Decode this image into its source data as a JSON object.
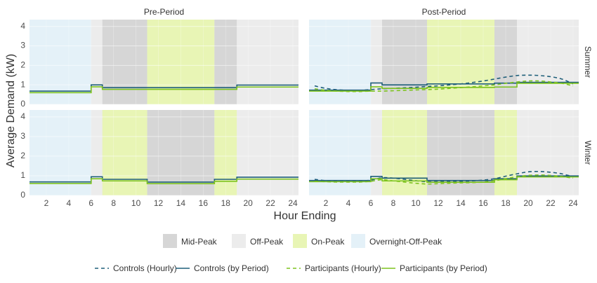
{
  "chart_data": {
    "type": "line",
    "xlabel": "Hour Ending",
    "ylabel": "Average Demand (kW)",
    "columns": [
      "Pre-Period",
      "Post-Period"
    ],
    "rows": [
      "Summer",
      "Winter"
    ],
    "x_ticks": [
      2,
      4,
      6,
      8,
      10,
      12,
      14,
      16,
      18,
      20,
      22,
      24
    ],
    "x_range": [
      0.5,
      24.5
    ],
    "y_ticks": [
      0,
      1,
      2,
      3,
      4
    ],
    "y_range": [
      0,
      4.35
    ],
    "grid": true,
    "legend_position": "bottom",
    "period_legend": [
      {
        "name": "Mid-Peak",
        "color": "#d6d6d6"
      },
      {
        "name": "Off-Peak",
        "color": "#ececec"
      },
      {
        "name": "On-Peak",
        "color": "#e8f5b5"
      },
      {
        "name": "Overnight-Off-Peak",
        "color": "#e4f1f8"
      }
    ],
    "series_legend": [
      {
        "name": "Controls (Hourly)",
        "color": "#1f5f7a",
        "style": "dashed"
      },
      {
        "name": "Controls (by Period)",
        "color": "#1f5f7a",
        "style": "solid"
      },
      {
        "name": "Participants (Hourly)",
        "color": "#7dc31e",
        "style": "dashed"
      },
      {
        "name": "Participants (by Period)",
        "color": "#7dc31e",
        "style": "solid"
      }
    ],
    "panels": [
      {
        "column": "Pre-Period",
        "row": "Summer",
        "bands": [
          {
            "from": 0,
            "to": 6,
            "period": "Overnight-Off-Peak"
          },
          {
            "from": 6,
            "to": 7,
            "period": "Off-Peak"
          },
          {
            "from": 7,
            "to": 11,
            "period": "Mid-Peak"
          },
          {
            "from": 11,
            "to": 17,
            "period": "On-Peak"
          },
          {
            "from": 17,
            "to": 19,
            "period": "Mid-Peak"
          },
          {
            "from": 19,
            "to": 24,
            "period": "Off-Peak"
          }
        ],
        "series": [
          {
            "name": "Controls (by Period)",
            "steps": [
              [
                0.5,
                6,
                0.68
              ],
              [
                6,
                7,
                1.0
              ],
              [
                7,
                19,
                0.86
              ],
              [
                19,
                24.5,
                0.99
              ]
            ]
          },
          {
            "name": "Participants (by Period)",
            "steps": [
              [
                0.5,
                6,
                0.6
              ],
              [
                6,
                7,
                0.9
              ],
              [
                7,
                19,
                0.77
              ],
              [
                19,
                24.5,
                0.89
              ]
            ]
          }
        ]
      },
      {
        "column": "Post-Period",
        "row": "Summer",
        "bands": [
          {
            "from": 0,
            "to": 6,
            "period": "Overnight-Off-Peak"
          },
          {
            "from": 6,
            "to": 7,
            "period": "Off-Peak"
          },
          {
            "from": 7,
            "to": 11,
            "period": "Mid-Peak"
          },
          {
            "from": 11,
            "to": 17,
            "period": "On-Peak"
          },
          {
            "from": 17,
            "to": 19,
            "period": "Mid-Peak"
          },
          {
            "from": 19,
            "to": 24,
            "period": "Off-Peak"
          }
        ],
        "series": [
          {
            "name": "Controls (Hourly)",
            "x": [
              1,
              2,
              3,
              4,
              5,
              6,
              7,
              8,
              9,
              10,
              11,
              12,
              13,
              14,
              15,
              16,
              17,
              18,
              19,
              20,
              21,
              22,
              23,
              24
            ],
            "y": [
              0.95,
              0.82,
              0.75,
              0.72,
              0.72,
              0.76,
              0.8,
              0.82,
              0.85,
              0.88,
              0.92,
              0.95,
              1.0,
              1.05,
              1.12,
              1.2,
              1.3,
              1.4,
              1.48,
              1.5,
              1.48,
              1.42,
              1.3,
              1.05
            ]
          },
          {
            "name": "Controls (by Period)",
            "steps": [
              [
                0.5,
                6,
                0.73
              ],
              [
                6,
                7,
                1.1
              ],
              [
                7,
                11,
                1.0
              ],
              [
                11,
                17,
                1.05
              ],
              [
                17,
                19,
                1.09
              ],
              [
                19,
                24.5,
                1.13
              ]
            ]
          },
          {
            "name": "Participants (Hourly)",
            "x": [
              1,
              2,
              3,
              4,
              5,
              6,
              7,
              8,
              9,
              10,
              11,
              12,
              13,
              14,
              15,
              16,
              17,
              18,
              19,
              20,
              21,
              22,
              23,
              24
            ],
            "y": [
              0.8,
              0.72,
              0.68,
              0.66,
              0.66,
              0.68,
              0.68,
              0.7,
              0.72,
              0.74,
              0.76,
              0.78,
              0.82,
              0.86,
              0.9,
              0.95,
              1.0,
              1.08,
              1.15,
              1.2,
              1.2,
              1.15,
              1.08,
              0.95
            ]
          },
          {
            "name": "Participants (by Period)",
            "steps": [
              [
                0.5,
                6,
                0.68
              ],
              [
                6,
                7,
                0.9
              ],
              [
                7,
                11,
                0.82
              ],
              [
                11,
                17,
                0.87
              ],
              [
                17,
                19,
                0.89
              ],
              [
                19,
                24.5,
                1.08
              ]
            ]
          }
        ]
      },
      {
        "column": "Pre-Period",
        "row": "Winter",
        "bands": [
          {
            "from": 0,
            "to": 6,
            "period": "Overnight-Off-Peak"
          },
          {
            "from": 6,
            "to": 7,
            "period": "Off-Peak"
          },
          {
            "from": 7,
            "to": 11,
            "period": "On-Peak"
          },
          {
            "from": 11,
            "to": 17,
            "period": "Mid-Peak"
          },
          {
            "from": 17,
            "to": 19,
            "period": "On-Peak"
          },
          {
            "from": 19,
            "to": 24,
            "period": "Off-Peak"
          }
        ],
        "series": [
          {
            "name": "Controls (by Period)",
            "steps": [
              [
                0.5,
                6,
                0.69
              ],
              [
                6,
                7,
                0.95
              ],
              [
                7,
                11,
                0.82
              ],
              [
                11,
                17,
                0.68
              ],
              [
                17,
                19,
                0.82
              ],
              [
                19,
                24.5,
                0.93
              ]
            ]
          },
          {
            "name": "Participants (by Period)",
            "steps": [
              [
                0.5,
                6,
                0.61
              ],
              [
                6,
                7,
                0.85
              ],
              [
                7,
                11,
                0.74
              ],
              [
                11,
                17,
                0.6
              ],
              [
                17,
                19,
                0.72
              ],
              [
                19,
                24.5,
                0.83
              ]
            ]
          }
        ]
      },
      {
        "column": "Post-Period",
        "row": "Winter",
        "bands": [
          {
            "from": 0,
            "to": 6,
            "period": "Overnight-Off-Peak"
          },
          {
            "from": 6,
            "to": 7,
            "period": "Off-Peak"
          },
          {
            "from": 7,
            "to": 11,
            "period": "On-Peak"
          },
          {
            "from": 11,
            "to": 17,
            "period": "Mid-Peak"
          },
          {
            "from": 17,
            "to": 19,
            "period": "On-Peak"
          },
          {
            "from": 19,
            "to": 24,
            "period": "Off-Peak"
          }
        ],
        "series": [
          {
            "name": "Controls (Hourly)",
            "x": [
              1,
              2,
              3,
              4,
              5,
              6,
              7,
              8,
              9,
              10,
              11,
              12,
              13,
              14,
              15,
              16,
              17,
              18,
              19,
              20,
              21,
              22,
              23,
              24
            ],
            "y": [
              0.82,
              0.75,
              0.72,
              0.72,
              0.73,
              0.78,
              0.9,
              0.88,
              0.82,
              0.75,
              0.7,
              0.7,
              0.72,
              0.72,
              0.74,
              0.78,
              0.85,
              0.98,
              1.1,
              1.2,
              1.22,
              1.18,
              1.1,
              0.95
            ]
          },
          {
            "name": "Controls (by Period)",
            "steps": [
              [
                0.5,
                6,
                0.76
              ],
              [
                6,
                7,
                0.97
              ],
              [
                7,
                11,
                0.88
              ],
              [
                11,
                17,
                0.76
              ],
              [
                17,
                19,
                0.85
              ],
              [
                19,
                24.5,
                0.99
              ]
            ]
          },
          {
            "name": "Participants (Hourly)",
            "x": [
              1,
              2,
              3,
              4,
              5,
              6,
              7,
              8,
              9,
              10,
              11,
              12,
              13,
              14,
              15,
              16,
              17,
              18,
              19,
              20,
              21,
              22,
              23,
              24
            ],
            "y": [
              0.72,
              0.7,
              0.68,
              0.68,
              0.68,
              0.72,
              0.8,
              0.74,
              0.68,
              0.62,
              0.58,
              0.6,
              0.62,
              0.64,
              0.65,
              0.68,
              0.75,
              0.85,
              0.95,
              1.02,
              1.04,
              1.02,
              0.96,
              0.88
            ]
          },
          {
            "name": "Participants (by Period)",
            "steps": [
              [
                0.5,
                6,
                0.7
              ],
              [
                6,
                7,
                0.85
              ],
              [
                7,
                11,
                0.74
              ],
              [
                11,
                17,
                0.67
              ],
              [
                17,
                19,
                0.8
              ],
              [
                19,
                24.5,
                0.94
              ]
            ]
          }
        ]
      }
    ]
  }
}
